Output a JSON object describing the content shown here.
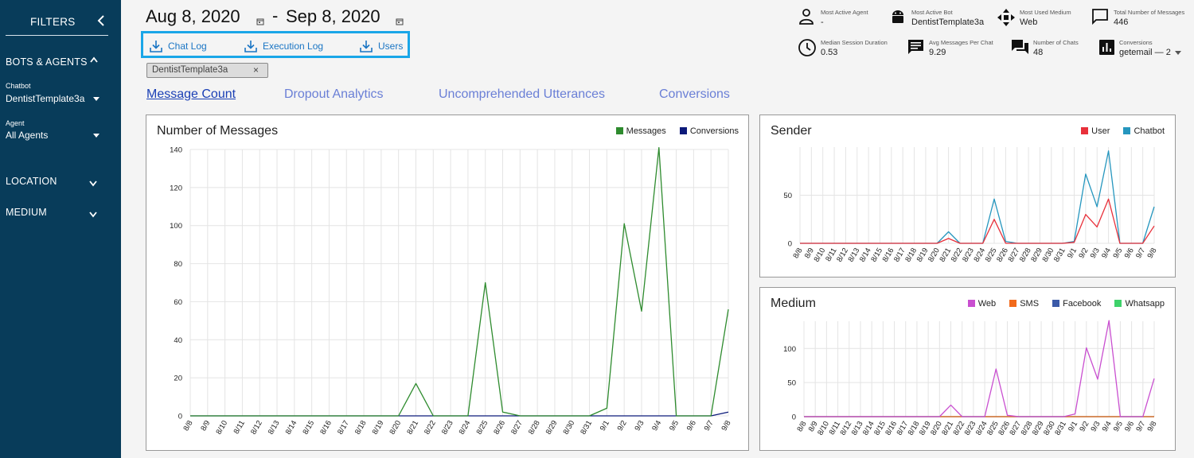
{
  "sidebar": {
    "title": "FILTERS",
    "sections": [
      {
        "label": "BOTS & AGENTS",
        "expanded": true
      },
      {
        "label": "LOCATION",
        "expanded": false
      },
      {
        "label": "MEDIUM",
        "expanded": false
      }
    ],
    "chatbot": {
      "label": "Chatbot",
      "value": "DentistTemplate3a"
    },
    "agent": {
      "label": "Agent",
      "value": "All Agents"
    }
  },
  "header": {
    "start_date": "Aug 8, 2020",
    "separator": "-",
    "end_date": "Sep 8, 2020"
  },
  "downloads": [
    {
      "label": "Chat Log"
    },
    {
      "label": "Execution Log"
    },
    {
      "label": "Users"
    }
  ],
  "chip": {
    "label": "DentistTemplate3a",
    "close": "×"
  },
  "tabs": [
    {
      "label": "Message Count",
      "active": true
    },
    {
      "label": "Dropout Analytics",
      "active": false
    },
    {
      "label": "Uncomprehended Utterances",
      "active": false
    },
    {
      "label": "Conversions",
      "active": false
    }
  ],
  "stats": {
    "most_active_agent": {
      "label": "Most Active Agent",
      "value": "-",
      "icon": "person-icon"
    },
    "most_active_bot": {
      "label": "Most Active Bot",
      "value": "DentistTemplate3a",
      "icon": "android-icon"
    },
    "most_used_medium": {
      "label": "Most Used Medium",
      "value": "Web",
      "icon": "move-icon"
    },
    "total_messages": {
      "label": "Total Number of Messages",
      "value": "446",
      "icon": "chat-bubble-icon"
    },
    "median_session": {
      "label": "Median Session Duration",
      "value": "0.53",
      "icon": "clock-icon"
    },
    "avg_messages": {
      "label": "Avg Messages Per Chat",
      "value": "9.29",
      "icon": "message-icon"
    },
    "number_of_chats": {
      "label": "Number of Chats",
      "value": "48",
      "icon": "forum-icon"
    },
    "conversions": {
      "label": "Conversions",
      "value": "getemail — 2",
      "icon": "bar-chart-icon"
    }
  },
  "colors": {
    "sidebar": "#083c5a",
    "messages": "#2e8b2e",
    "conversions": "#0c1a7a",
    "user": "#e8303a",
    "chatbot": "#2596be",
    "web": "#c94fd0",
    "sms": "#f26a1b",
    "facebook": "#3b5aa8",
    "whatsapp": "#3ed26a",
    "highlight": "#1aa6e8"
  },
  "chart_data": [
    {
      "type": "line",
      "title": "Number of Messages",
      "x": [
        "8/8",
        "8/9",
        "8/10",
        "8/11",
        "8/12",
        "8/13",
        "8/14",
        "8/15",
        "8/16",
        "8/17",
        "8/18",
        "8/19",
        "8/20",
        "8/21",
        "8/22",
        "8/23",
        "8/24",
        "8/25",
        "8/26",
        "8/27",
        "8/28",
        "8/29",
        "8/30",
        "8/31",
        "9/1",
        "9/2",
        "9/3",
        "9/4",
        "9/5",
        "9/6",
        "9/7",
        "9/8"
      ],
      "ylim": [
        0,
        140
      ],
      "yticks": [
        0,
        20,
        40,
        60,
        80,
        100,
        120,
        140
      ],
      "legend_position": "top-right",
      "grid": true,
      "series": [
        {
          "name": "Messages",
          "color": "#2e8b2e",
          "values": [
            0,
            0,
            0,
            0,
            0,
            0,
            0,
            0,
            0,
            0,
            0,
            0,
            0,
            17,
            0,
            0,
            0,
            70,
            2,
            0,
            0,
            0,
            0,
            0,
            4,
            101,
            55,
            141,
            0,
            0,
            0,
            56
          ]
        },
        {
          "name": "Conversions",
          "color": "#0c1a7a",
          "values": [
            0,
            0,
            0,
            0,
            0,
            0,
            0,
            0,
            0,
            0,
            0,
            0,
            0,
            0,
            0,
            0,
            0,
            0,
            0,
            0,
            0,
            0,
            0,
            0,
            0,
            0,
            0,
            0,
            0,
            0,
            0,
            2
          ]
        }
      ]
    },
    {
      "type": "line",
      "title": "Sender",
      "x": [
        "8/8",
        "8/9",
        "8/10",
        "8/11",
        "8/12",
        "8/13",
        "8/14",
        "8/15",
        "8/16",
        "8/17",
        "8/18",
        "8/19",
        "8/20",
        "8/21",
        "8/22",
        "8/23",
        "8/24",
        "8/25",
        "8/26",
        "8/27",
        "8/28",
        "8/29",
        "8/30",
        "8/31",
        "9/1",
        "9/2",
        "9/3",
        "9/4",
        "9/5",
        "9/6",
        "9/7",
        "9/8"
      ],
      "ylim": [
        0,
        100
      ],
      "yticks": [
        0,
        50
      ],
      "legend_position": "top-right",
      "grid": true,
      "series": [
        {
          "name": "User",
          "color": "#e8303a",
          "values": [
            0,
            0,
            0,
            0,
            0,
            0,
            0,
            0,
            0,
            0,
            0,
            0,
            0,
            5,
            0,
            0,
            0,
            25,
            0,
            0,
            0,
            0,
            0,
            0,
            1,
            30,
            17,
            46,
            0,
            0,
            0,
            18
          ]
        },
        {
          "name": "Chatbot",
          "color": "#2596be",
          "values": [
            0,
            0,
            0,
            0,
            0,
            0,
            0,
            0,
            0,
            0,
            0,
            0,
            0,
            12,
            0,
            0,
            0,
            46,
            2,
            0,
            0,
            0,
            0,
            0,
            2,
            72,
            38,
            96,
            0,
            0,
            0,
            38
          ]
        }
      ]
    },
    {
      "type": "line",
      "title": "Medium",
      "x": [
        "8/8",
        "8/9",
        "8/10",
        "8/11",
        "8/12",
        "8/13",
        "8/14",
        "8/15",
        "8/16",
        "8/17",
        "8/18",
        "8/19",
        "8/20",
        "8/21",
        "8/22",
        "8/23",
        "8/24",
        "8/25",
        "8/26",
        "8/27",
        "8/28",
        "8/29",
        "8/30",
        "8/31",
        "9/1",
        "9/2",
        "9/3",
        "9/4",
        "9/5",
        "9/6",
        "9/7",
        "9/8"
      ],
      "ylim": [
        0,
        140
      ],
      "yticks": [
        0,
        50,
        100
      ],
      "legend_position": "top-right",
      "grid": true,
      "series": [
        {
          "name": "Web",
          "color": "#c94fd0",
          "values": [
            0,
            0,
            0,
            0,
            0,
            0,
            0,
            0,
            0,
            0,
            0,
            0,
            0,
            17,
            0,
            0,
            0,
            70,
            2,
            0,
            0,
            0,
            0,
            0,
            4,
            101,
            55,
            141,
            0,
            0,
            0,
            56
          ]
        },
        {
          "name": "SMS",
          "color": "#f26a1b",
          "values": [
            0,
            0,
            0,
            0,
            0,
            0,
            0,
            0,
            0,
            0,
            0,
            0,
            0,
            0,
            0,
            0,
            0,
            0,
            0,
            0,
            0,
            0,
            0,
            0,
            0,
            0,
            0,
            0,
            0,
            0,
            0,
            0
          ]
        },
        {
          "name": "Facebook",
          "color": "#3b5aa8",
          "values": [
            0,
            0,
            0,
            0,
            0,
            0,
            0,
            0,
            0,
            0,
            0,
            0,
            0,
            0,
            0,
            0,
            0,
            0,
            0,
            0,
            0,
            0,
            0,
            0,
            0,
            0,
            0,
            0,
            0,
            0,
            0,
            0
          ]
        },
        {
          "name": "Whatsapp",
          "color": "#3ed26a",
          "values": [
            0,
            0,
            0,
            0,
            0,
            0,
            0,
            0,
            0,
            0,
            0,
            0,
            0,
            0,
            0,
            0,
            0,
            0,
            0,
            0,
            0,
            0,
            0,
            0,
            0,
            0,
            0,
            0,
            0,
            0,
            0,
            0
          ]
        }
      ]
    }
  ]
}
